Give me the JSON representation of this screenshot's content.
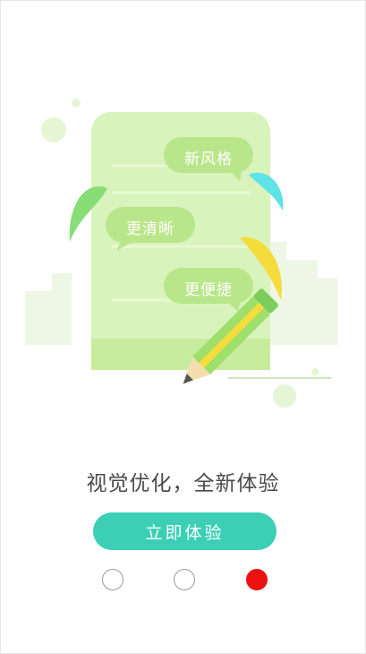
{
  "illustration": {
    "bubbles": [
      "新风格",
      "更清晰",
      "更便捷"
    ]
  },
  "headline": "视觉优化，全新体验",
  "cta_label": "立即体验",
  "pagination": {
    "total": 3,
    "current": 3
  },
  "colors": {
    "accent": "#3ccfb5",
    "active_dot": "#ee1111",
    "bubble": "#b9e68a",
    "card": "#d9f3bc"
  }
}
